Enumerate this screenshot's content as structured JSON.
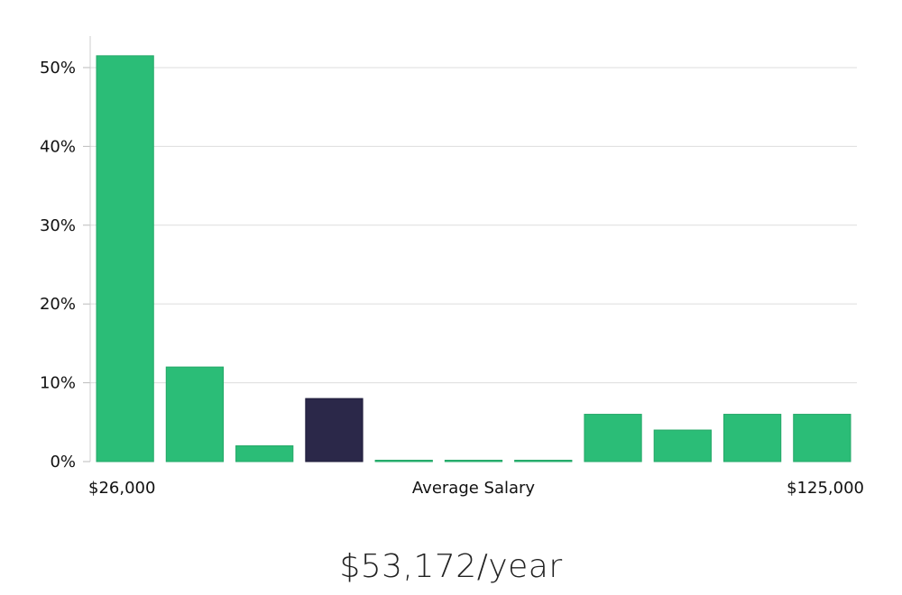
{
  "chart_data": {
    "type": "bar",
    "categories": [
      "1",
      "2",
      "3",
      "4",
      "5",
      "6",
      "7",
      "8",
      "9",
      "10",
      "11"
    ],
    "values": [
      51.5,
      12,
      2,
      8,
      0.1,
      0.1,
      0.1,
      6,
      4,
      6,
      6
    ],
    "highlight_index": 3,
    "ylim": [
      0,
      54
    ],
    "yticks": [
      "0%",
      "10%",
      "20%",
      "30%",
      "40%",
      "50%"
    ],
    "ytick_values": [
      0,
      10,
      20,
      30,
      40,
      50
    ],
    "grid": true,
    "x_left_label": "$26,000",
    "x_center_label": "Average Salary",
    "x_right_label": "$125,000",
    "colors": {
      "bar": "#2bbd77",
      "highlight": "#2b2849",
      "grid": "#dddddd",
      "axis": "#cccccc"
    }
  },
  "salary_text": "$53,172/year"
}
